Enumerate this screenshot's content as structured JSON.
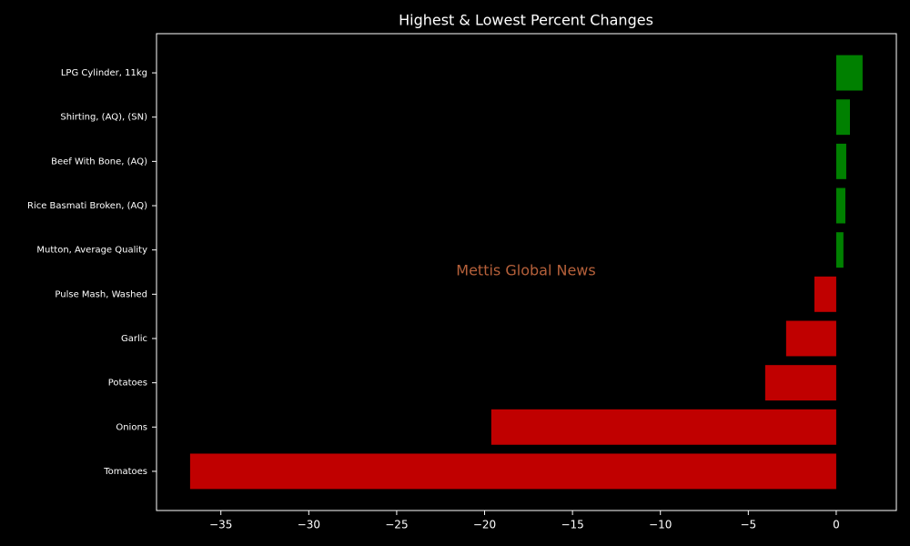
{
  "chart_data": {
    "type": "barh",
    "title": "Highest & Lowest Percent Changes",
    "annotation": "Mettis Global News",
    "categories": [
      "LPG Cylinder, 11kg",
      "Shirting, (AQ), (SN)",
      "Beef With Bone, (AQ)",
      "Rice Basmati Broken, (AQ)",
      "Mutton, Average Quality",
      "Pulse Mash, Washed",
      "Garlic",
      "Potatoes",
      "Onions",
      "Tomatoes"
    ],
    "values": [
      1.5,
      0.78,
      0.57,
      0.52,
      0.41,
      -1.24,
      -2.85,
      -4.04,
      -19.62,
      -36.75
    ],
    "colors": [
      "#008000",
      "#008000",
      "#008000",
      "#008000",
      "#008000",
      "#c00000",
      "#c00000",
      "#c00000",
      "#c00000",
      "#c00000"
    ],
    "xlim": [
      -38.66,
      3.42
    ],
    "xticks": [
      {
        "value": -35,
        "label": "−35"
      },
      {
        "value": -30,
        "label": "−30"
      },
      {
        "value": -25,
        "label": "−25"
      },
      {
        "value": -20,
        "label": "−20"
      },
      {
        "value": -15,
        "label": "−15"
      },
      {
        "value": -10,
        "label": "−10"
      },
      {
        "value": -5,
        "label": "−5"
      },
      0
    ],
    "grid": false
  }
}
